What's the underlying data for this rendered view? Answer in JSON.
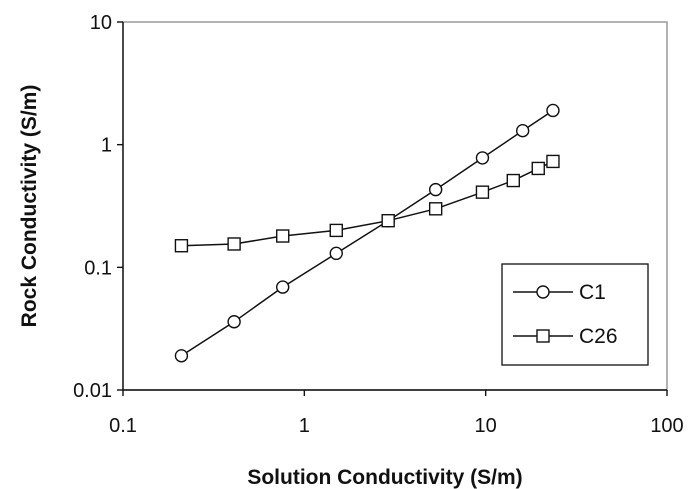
{
  "chart_data": {
    "type": "line",
    "title": "",
    "xlabel": "Solution Conductivity (S/m)",
    "ylabel": "Rock Conductivity (S/m)",
    "xscale": "log",
    "yscale": "log",
    "xlim": [
      0.1,
      100
    ],
    "ylim": [
      0.01,
      10
    ],
    "x_ticks": [
      0.1,
      1,
      10,
      100
    ],
    "x_tick_labels": [
      "0.1",
      "1",
      "10",
      "100"
    ],
    "y_ticks": [
      0.01,
      0.1,
      1,
      10
    ],
    "y_tick_labels": [
      "0.01",
      "0.1",
      "1",
      "10"
    ],
    "grid": false,
    "legend_position": "lower-right",
    "series": [
      {
        "name": "C1",
        "marker": "circle",
        "x": [
          0.21,
          0.41,
          0.76,
          1.5,
          2.9,
          5.3,
          9.6,
          16,
          23.5
        ],
        "y": [
          0.019,
          0.036,
          0.069,
          0.13,
          0.24,
          0.43,
          0.78,
          1.3,
          1.9
        ]
      },
      {
        "name": "C26",
        "marker": "square",
        "x": [
          0.21,
          0.41,
          0.76,
          1.5,
          2.9,
          5.3,
          9.6,
          14.2,
          19.5,
          23.5
        ],
        "y": [
          0.15,
          0.155,
          0.18,
          0.2,
          0.24,
          0.3,
          0.41,
          0.51,
          0.64,
          0.73
        ]
      }
    ]
  }
}
